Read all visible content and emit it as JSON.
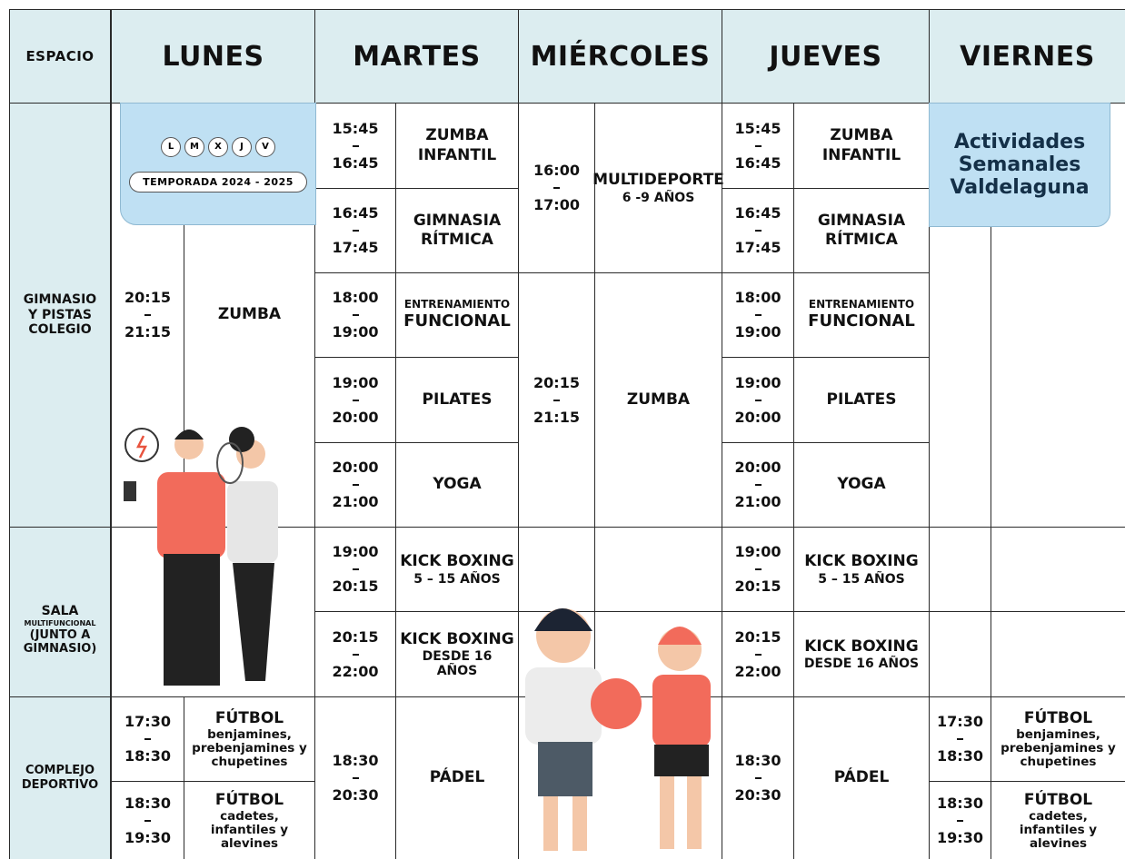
{
  "header": {
    "space": "ESPACIO",
    "days": [
      "LUNES",
      "MARTES",
      "MIÉRCOLES",
      "JUEVES",
      "VIERNES"
    ]
  },
  "spaces": [
    {
      "name": "GIMNASIO Y PISTAS COLEGIO"
    },
    {
      "name": "SALA",
      "note": "MULTIFUNCIONAL",
      "extra": "(JUNTO A GIMNASIO)"
    },
    {
      "name": "COMPLEJO DEPORTIVO"
    }
  ],
  "banner": {
    "days": [
      "L",
      "M",
      "X",
      "J",
      "V"
    ],
    "season": "TEMPORADA 2024 - 2025"
  },
  "title": "Actividades Semanales Valdelaguna",
  "schedule": [
    [
      {
        "start": "20:15",
        "end": "21:15",
        "activity": "ZUMBA"
      },
      {
        "start": "17:30",
        "end": "18:30",
        "activity": "FÚTBOL",
        "detail": "benjamines, prebenjamines y chupetines"
      },
      {
        "start": "18:30",
        "end": "19:30",
        "activity": "FÚTBOL",
        "detail": "cadetes, infantiles y alevines"
      }
    ],
    [
      {
        "start": "15:45",
        "end": "16:45",
        "activity": "ZUMBA INFANTIL"
      },
      {
        "start": "16:45",
        "end": "17:45",
        "activity": "GIMNASIA RÍTMICA"
      },
      {
        "start": "18:00",
        "end": "19:00",
        "label": "ENTRENAMIENTO",
        "activity": "FUNCIONAL"
      },
      {
        "start": "19:00",
        "end": "20:00",
        "activity": "PILATES"
      },
      {
        "start": "20:00",
        "end": "21:00",
        "activity": "YOGA"
      },
      {
        "start": "19:00",
        "end": "20:15",
        "activity": "KICK BOXING",
        "detail": "5 – 15 AÑOS"
      },
      {
        "start": "20:15",
        "end": "22:00",
        "activity": "KICK BOXING",
        "detail": "DESDE 16 AÑOS"
      },
      {
        "start": "18:30",
        "end": "20:30",
        "activity": "PÁDEL"
      }
    ],
    [
      {
        "start": "16:00",
        "end": "17:00",
        "activity": "MULTIDEPORTE",
        "detail": "6 -9 AÑOS"
      },
      {
        "start": "20:15",
        "end": "21:15",
        "activity": "ZUMBA"
      }
    ],
    [
      {
        "start": "15:45",
        "end": "16:45",
        "activity": "ZUMBA INFANTIL"
      },
      {
        "start": "16:45",
        "end": "17:45",
        "activity": "GIMNASIA RÍTMICA"
      },
      {
        "start": "18:00",
        "end": "19:00",
        "label": "ENTRENAMIENTO",
        "activity": "FUNCIONAL"
      },
      {
        "start": "19:00",
        "end": "20:00",
        "activity": "PILATES"
      },
      {
        "start": "20:00",
        "end": "21:00",
        "activity": "YOGA"
      },
      {
        "start": "19:00",
        "end": "20:15",
        "activity": "KICK BOXING",
        "detail": "5 – 15 AÑOS"
      },
      {
        "start": "20:15",
        "end": "22:00",
        "activity": "KICK BOXING",
        "detail": "DESDE 16 AÑOS"
      },
      {
        "start": "18:30",
        "end": "20:30",
        "activity": "PÁDEL"
      }
    ],
    [
      {
        "start": "17:30",
        "end": "18:30",
        "activity": "FÚTBOL",
        "detail": "benjamines, prebenjamines y chupetines"
      },
      {
        "start": "18:30",
        "end": "19:30",
        "activity": "FÚTBOL",
        "detail": "cadetes, infantiles y alevines"
      }
    ]
  ]
}
